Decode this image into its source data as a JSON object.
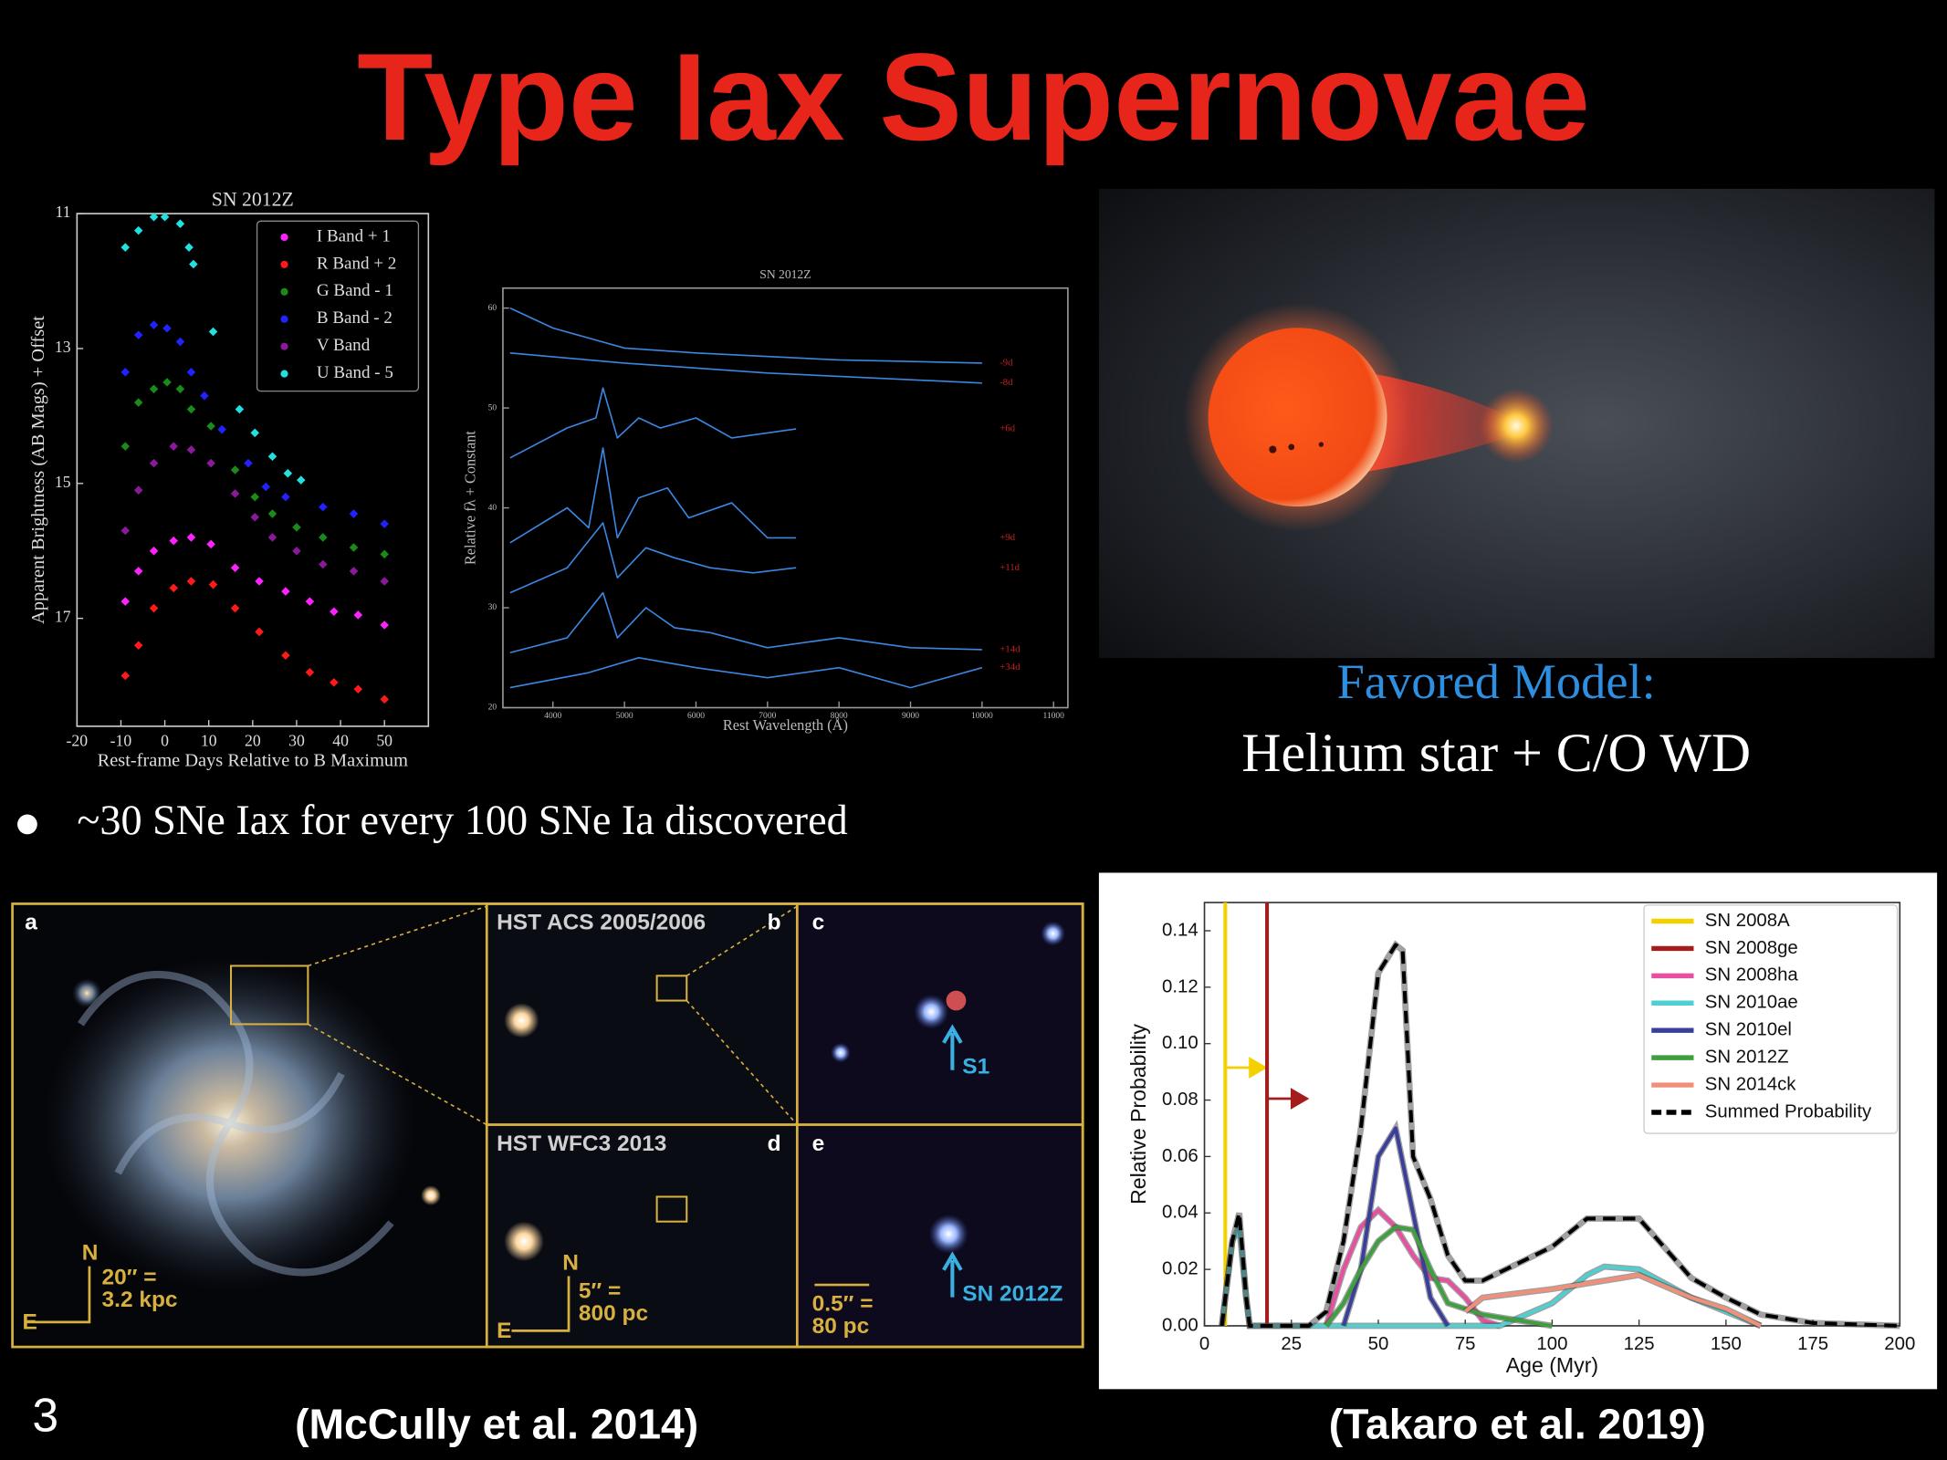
{
  "slide": {
    "title": "Type Iax Supernovae",
    "model_heading": "Favored Model:",
    "model_text": "Helium star + C/O WD",
    "bullet": "~30 SNe Iax for every 100 SNe Ia discovered",
    "citation_left": "(McCully et al. 2014)",
    "citation_right": "(Takaro et al. 2019)",
    "page_number": "3"
  },
  "hst_panel": {
    "panels": [
      "a",
      "b",
      "c",
      "d",
      "e"
    ],
    "acs_label": "HST ACS 2005/2006",
    "wfc3_label": "HST WFC3 2013",
    "s1_label": "S1",
    "sn_label": "SN 2012Z",
    "north": "N",
    "east": "E",
    "scale_a": [
      "20″ =",
      "3.2 kpc"
    ],
    "scale_d": [
      "5″ =",
      "800 pc"
    ],
    "scale_e": [
      "0.5″ =",
      "80 pc"
    ]
  },
  "chart_data": [
    {
      "type": "scatter",
      "title": "SN 2012Z",
      "x_label": "Rest-frame Days Relative to B Maximum",
      "y_label": "Apparent Brightness (AB Mags) + Offset",
      "xlim": [
        -20,
        60
      ],
      "ylim": [
        18.6,
        11
      ],
      "xticks": [
        -20,
        -10,
        0,
        10,
        20,
        30,
        40,
        50
      ],
      "yticks": [
        11,
        13,
        15,
        17
      ],
      "legend": "upper right",
      "series": [
        {
          "name": "I Band + 1",
          "color": "#ff22ff",
          "x": [
            -9,
            -6,
            -2.5,
            2,
            6,
            10.5,
            16,
            21.5,
            27.5,
            33,
            38.5,
            44,
            50
          ],
          "values": [
            16.75,
            16.3,
            16,
            15.85,
            15.8,
            15.9,
            16.25,
            16.45,
            16.6,
            16.75,
            16.9,
            16.95,
            17.1
          ]
        },
        {
          "name": "R Band + 2",
          "color": "#ff1a1a",
          "x": [
            -9,
            -6,
            -2.5,
            2,
            6,
            11,
            16,
            21.5,
            27.5,
            33,
            38.5,
            44,
            50
          ],
          "values": [
            17.85,
            17.4,
            16.85,
            16.55,
            16.45,
            16.5,
            16.85,
            17.2,
            17.55,
            17.8,
            17.95,
            18.05,
            18.2
          ]
        },
        {
          "name": "G Band - 1",
          "color": "#1a8a1a",
          "x": [
            -9,
            -6,
            -2.5,
            0.5,
            3.5,
            6,
            10.5,
            16,
            20.5,
            24.5,
            30,
            36,
            43,
            50
          ],
          "values": [
            14.45,
            13.8,
            13.6,
            13.5,
            13.6,
            13.9,
            14.15,
            14.8,
            15.2,
            15.45,
            15.65,
            15.8,
            15.95,
            16.05
          ]
        },
        {
          "name": "B Band - 2",
          "color": "#2222ff",
          "x": [
            -9,
            -6,
            -2.5,
            0.5,
            3.5,
            6,
            9,
            13,
            19,
            23,
            27.5,
            36,
            43,
            50
          ],
          "values": [
            13.35,
            12.8,
            12.65,
            12.7,
            12.9,
            13.35,
            13.7,
            14.2,
            14.7,
            15.05,
            15.2,
            15.35,
            15.45,
            15.6
          ]
        },
        {
          "name": "V Band",
          "color": "#8a1a9a",
          "x": [
            -9,
            -6,
            -2.5,
            2,
            6,
            10.5,
            16,
            20.5,
            24.5,
            30,
            36,
            43,
            50
          ],
          "values": [
            15.7,
            15.1,
            14.7,
            14.45,
            14.5,
            14.7,
            15.15,
            15.5,
            15.8,
            16,
            16.2,
            16.3,
            16.45
          ]
        },
        {
          "name": "U Band - 5",
          "color": "#22e0e0",
          "x": [
            -9,
            -6,
            -2.5,
            0,
            3.5,
            5.5,
            6.5,
            11,
            17,
            20.5,
            24.5,
            28,
            31
          ],
          "values": [
            11.5,
            11.25,
            11.05,
            11.05,
            11.15,
            11.5,
            11.75,
            12.75,
            13.9,
            14.25,
            14.6,
            14.85,
            14.95
          ]
        }
      ]
    },
    {
      "type": "line",
      "title": "SN 2012Z",
      "x_label": "Rest Wavelength (Å)",
      "y_label": "Relative fλ + Constant",
      "xlim": [
        3300,
        11200
      ],
      "ylim": [
        20,
        62
      ],
      "xticks": [
        4000,
        5000,
        6000,
        7000,
        8000,
        9000,
        10000,
        11000
      ],
      "yticks": [
        20,
        30,
        40,
        50,
        60
      ],
      "line_color": "#3a86e0",
      "label_color": "#c0201a",
      "series": [
        {
          "name": "-9d",
          "x": [
            3400,
            4000,
            5000,
            6000,
            8000,
            10000
          ],
          "values": [
            60,
            58,
            56,
            55.5,
            54.8,
            54.5
          ]
        },
        {
          "name": "-8d",
          "x": [
            3400,
            5000,
            7000,
            10000
          ],
          "values": [
            55.5,
            54.5,
            53.5,
            52.5
          ]
        },
        {
          "name": "+6d",
          "x": [
            3400,
            4200,
            4600,
            4700,
            4900,
            5200,
            5500,
            6000,
            6500,
            7400
          ],
          "values": [
            45,
            48,
            49,
            52,
            47,
            49,
            48,
            49,
            47,
            47.9
          ]
        },
        {
          "name": "+9d",
          "x": [
            3400,
            4200,
            4500,
            4700,
            4900,
            5200,
            5600,
            5900,
            6500,
            7000,
            7400
          ],
          "values": [
            36.5,
            40,
            38,
            46,
            37,
            41,
            42,
            39,
            40.5,
            37,
            37
          ]
        },
        {
          "name": "+11d",
          "x": [
            3400,
            4200,
            4700,
            4900,
            5300,
            5700,
            6200,
            6800,
            7400
          ],
          "values": [
            31.5,
            34,
            38.5,
            33,
            36,
            35,
            34,
            33.5,
            34
          ]
        },
        {
          "name": "+14d",
          "x": [
            3400,
            4200,
            4700,
            4900,
            5300,
            5700,
            6200,
            7000,
            8000,
            9000,
            10000
          ],
          "values": [
            25.5,
            27,
            31.5,
            27,
            30,
            28,
            27.5,
            26,
            27,
            26,
            25.8
          ]
        },
        {
          "name": "+34d",
          "x": [
            3400,
            4500,
            5200,
            6000,
            7000,
            8000,
            9000,
            10000
          ],
          "values": [
            22,
            23.5,
            25,
            24,
            23,
            24,
            22,
            24
          ]
        }
      ]
    },
    {
      "type": "line",
      "x_label": "Age (Myr)",
      "y_label": "Relative Probability",
      "xlim": [
        0,
        200
      ],
      "ylim": [
        0,
        0.15
      ],
      "xticks": [
        0,
        25,
        50,
        75,
        100,
        125,
        150,
        175,
        200
      ],
      "yticks": [
        {
          "value": 0,
          "label": "0.00"
        },
        {
          "value": 0.02,
          "label": "0.02"
        },
        {
          "value": 0.04,
          "label": "0.04"
        },
        {
          "value": 0.06,
          "label": "0.06"
        },
        {
          "value": 0.08,
          "label": "0.08"
        },
        {
          "value": 0.1,
          "label": "0.10"
        },
        {
          "value": 0.12,
          "label": "0.12"
        },
        {
          "value": 0.14,
          "label": "0.14"
        }
      ],
      "legend": "upper right",
      "series": [
        {
          "name": "SN 2008A",
          "color": "#f5d000",
          "vline_x": 6
        },
        {
          "name": "SN 2008ge",
          "color": "#a31d1d",
          "vline_x": 18
        },
        {
          "name": "SN 2008ha",
          "color": "#e84fa0",
          "x": [
            35,
            40,
            45,
            50,
            55,
            60,
            65,
            70,
            75,
            80,
            85
          ],
          "values": [
            0,
            0.02,
            0.035,
            0.041,
            0.035,
            0.025,
            0.017,
            0.016,
            0.01,
            0.002,
            0
          ]
        },
        {
          "name": "SN 2010ae",
          "color": "#4fcfcf",
          "x": [
            5,
            8,
            10,
            12,
            13,
            85,
            100,
            110,
            115,
            125,
            140,
            150,
            160
          ],
          "values": [
            0,
            0.03,
            0.035,
            0.01,
            0,
            0,
            0.008,
            0.018,
            0.021,
            0.02,
            0.01,
            0.005,
            0
          ]
        },
        {
          "name": "SN 2010el",
          "color": "#3a3f9a",
          "x": [
            40,
            45,
            50,
            55,
            60,
            65,
            70
          ],
          "values": [
            0,
            0.02,
            0.06,
            0.07,
            0.04,
            0.01,
            0
          ]
        },
        {
          "name": "SN 2012Z",
          "color": "#3f9f3f",
          "x": [
            35,
            40,
            45,
            50,
            55,
            60,
            65,
            70,
            80,
            90,
            100
          ],
          "values": [
            0,
            0.008,
            0.02,
            0.03,
            0.035,
            0.034,
            0.02,
            0.008,
            0.004,
            0.002,
            0
          ]
        },
        {
          "name": "SN 2014ck",
          "color": "#f0907a",
          "x": [
            75,
            80,
            100,
            125,
            140,
            150,
            160
          ],
          "values": [
            0.005,
            0.01,
            0.013,
            0.018,
            0.01,
            0.006,
            0
          ]
        },
        {
          "name": "Summed Probability",
          "color": "#000000",
          "linestyle": "dashed",
          "x": [
            5,
            8,
            10,
            12,
            13,
            30,
            35,
            40,
            45,
            50,
            55,
            57,
            60,
            65,
            70,
            75,
            80,
            90,
            100,
            110,
            125,
            140,
            150,
            160,
            175,
            200
          ],
          "values": [
            0,
            0.03,
            0.04,
            0.01,
            0,
            0,
            0.005,
            0.03,
            0.07,
            0.125,
            0.135,
            0.133,
            0.06,
            0.045,
            0.025,
            0.016,
            0.016,
            0.022,
            0.028,
            0.038,
            0.038,
            0.017,
            0.01,
            0.004,
            0.001,
            0
          ]
        }
      ]
    }
  ]
}
